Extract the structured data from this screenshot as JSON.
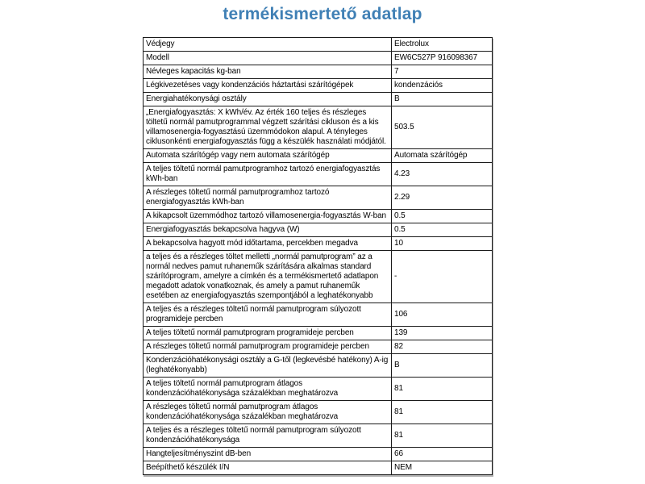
{
  "page": {
    "title": "termékismertető adatlap"
  },
  "colors": {
    "title_blue": "#4080b5",
    "border": "#1a1a1a",
    "text": "#000000",
    "background": "#ffffff"
  },
  "table": {
    "columns": [
      "property",
      "value"
    ],
    "rows": [
      {
        "label": "Védjegy",
        "value": "Electrolux"
      },
      {
        "label": "Modell",
        "value": "EW6C527P 916098367"
      },
      {
        "label": "Névleges kapacitás kg-ban",
        "value": "7"
      },
      {
        "label": "Légkivezetéses vagy kondenzációs háztartási szárítógépek",
        "value": "kondenzációs"
      },
      {
        "label": "Energiahatékonysági osztály",
        "value": "B"
      },
      {
        "label": "„Energiafogyasztás: X kWh/év. Az érték 160 teljes és részleges töltetű normál pamutprogrammal végzett szárítási cikluson és a kis villamosenergia-fogyasztású üzemmódokon alapul. A tényleges ciklusonkénti energiafogyasztás függ a készülék használati módjától.",
        "value": "503.5"
      },
      {
        "label": "Automata szárítógép vagy nem automata szárítógép",
        "value": "Automata szárítógép"
      },
      {
        "label": "A teljes töltetű normál pamutprogramhoz tartozó energiafogyasztás kWh-ban",
        "value": "4.23"
      },
      {
        "label": "A részleges töltetű normál pamutprogramhoz tartozó energiafogyasztás kWh-ban",
        "value": "2.29"
      },
      {
        "label": "A kikapcsolt üzemmódhoz tartozó villamosenergia-fogyasztás W-ban",
        "value": "0.5"
      },
      {
        "label": "Energiafogyasztás bekapcsolva hagyva (W)",
        "value": "0.5"
      },
      {
        "label": "A bekapcsolva hagyott mód időtartama, percekben megadva",
        "value": "10"
      },
      {
        "label": "a teljes és a részleges töltet melletti „normál pamutprogram” az a normál nedves pamut ruhaneműk szárítására alkalmas standard szárítóprogram, amelyre a címkén és a termékismertető adatlapon megadott adatok vonatkoznak, és amely a pamut ruhaneműk esetében az energiafogyasztás szempontjából a leghatékonyabb",
        "value": "-"
      },
      {
        "label": "A teljes és a részleges töltetű normál pamutprogram súlyozott programideje percben",
        "value": "106"
      },
      {
        "label": "A teljes töltetű normál pamutprogram programideje percben",
        "value": "139"
      },
      {
        "label": "A részleges töltetű normál pamutprogram programideje percben",
        "value": "82"
      },
      {
        "label": "Kondenzációhatékonysági osztály a G-től (legkevésbé hatékony) A-ig (leghatékonyabb)",
        "value": "B"
      },
      {
        "label": "A teljes töltetű normál pamutprogram átlagos kondenzációhatékonysága százalékban meghatározva",
        "value": "81"
      },
      {
        "label": "A részleges töltetű normál pamutprogram átlagos kondenzációhatékonysága százalékban meghatározva",
        "value": "81"
      },
      {
        "label": "A teljes és a részleges töltetű normál pamutprogram súlyozott kondenzációhatékonysága",
        "value": "81"
      },
      {
        "label": "Hangteljesítményszint dB-ben",
        "value": "66"
      },
      {
        "label": "Beépíthető készülék I/N",
        "value": "NEM"
      }
    ]
  }
}
